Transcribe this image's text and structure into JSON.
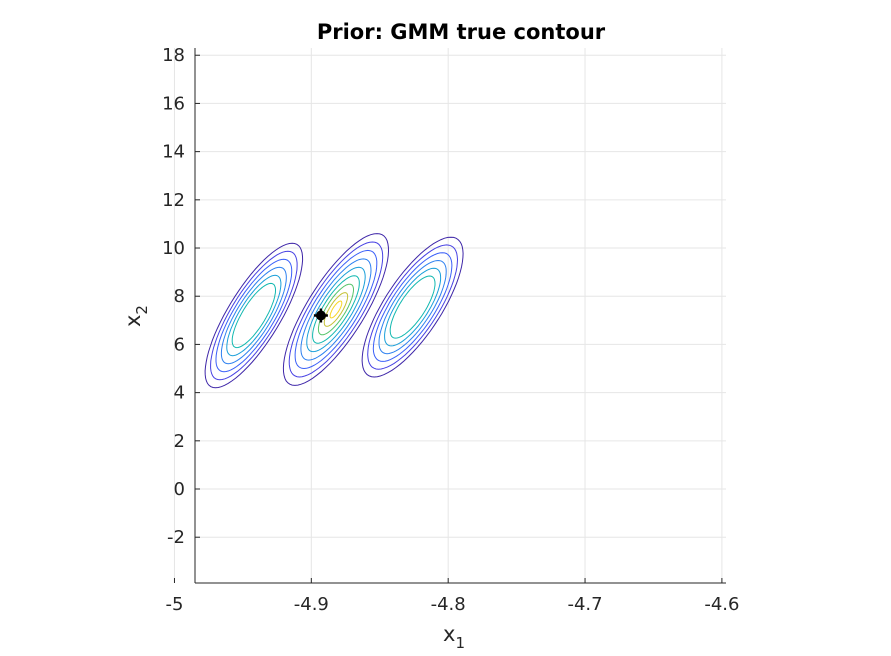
{
  "chart_data": {
    "type": "contour",
    "title": "Prior: GMM true contour",
    "xlabel": {
      "base": "x",
      "sub": "1"
    },
    "ylabel": {
      "base": "x",
      "sub": "2"
    },
    "xlim": [
      -4.985,
      -4.597
    ],
    "ylim": [
      -3.9,
      18.3
    ],
    "xticks": [
      -5,
      -4.9,
      -4.8,
      -4.7,
      -4.6
    ],
    "xtick_labels": [
      "-5",
      "-4.9",
      "-4.8",
      "-4.7",
      "-4.6"
    ],
    "yticks": [
      -2,
      0,
      2,
      4,
      6,
      8,
      10,
      12,
      14,
      16,
      18
    ],
    "ytick_labels": [
      "-2",
      "0",
      "2",
      "4",
      "6",
      "8",
      "10",
      "12",
      "14",
      "16",
      "18"
    ],
    "grid": true,
    "contour_levels": 9,
    "level_colors": [
      "#3e26a8",
      "#4741e3",
      "#3a5ff8",
      "#2d80f0",
      "#1a9fd9",
      "#12b8b0",
      "#55c46a",
      "#c4c035",
      "#f9d523"
    ],
    "components": [
      {
        "name": "left",
        "mean": [
          -4.942,
          7.2
        ],
        "half_width": [
          0.022,
          3.0
        ],
        "tilt": 0.028,
        "top_level": 6
      },
      {
        "name": "center",
        "mean": [
          -4.882,
          7.45
        ],
        "half_width": [
          0.024,
          3.15
        ],
        "tilt": 0.03,
        "top_level": 9
      },
      {
        "name": "right",
        "mean": [
          -4.826,
          7.55
        ],
        "half_width": [
          0.024,
          2.9
        ],
        "tilt": 0.028,
        "top_level": 6
      }
    ],
    "marker": {
      "x": -4.893,
      "y": 7.2,
      "color": "#000000"
    }
  }
}
